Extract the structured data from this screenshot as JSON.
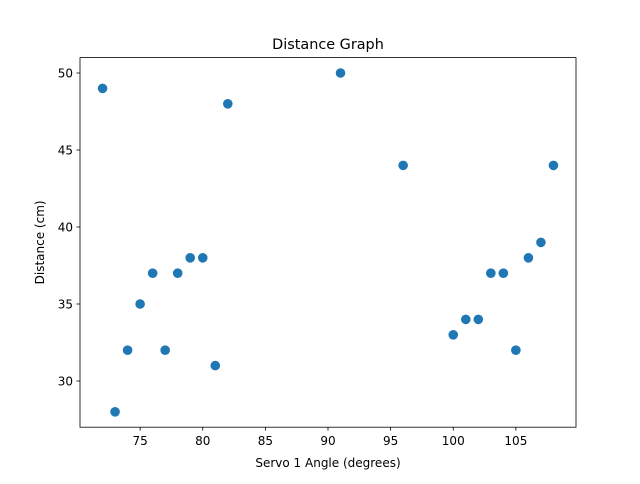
{
  "chart_data": {
    "type": "scatter",
    "title": "Distance Graph",
    "xlabel": "Servo 1 Angle (degrees)",
    "ylabel": "Distance (cm)",
    "xlim": [
      70.2,
      109.8
    ],
    "ylim": [
      27.0,
      51.0
    ],
    "xticks": [
      75,
      80,
      85,
      90,
      95,
      100,
      105
    ],
    "yticks": [
      30,
      35,
      40,
      45,
      50
    ],
    "grid": false,
    "marker_color": "#1f77b4",
    "points": [
      {
        "x": 72,
        "y": 49
      },
      {
        "x": 73,
        "y": 28
      },
      {
        "x": 74,
        "y": 32
      },
      {
        "x": 75,
        "y": 35
      },
      {
        "x": 76,
        "y": 37
      },
      {
        "x": 77,
        "y": 32
      },
      {
        "x": 78,
        "y": 37
      },
      {
        "x": 79,
        "y": 38
      },
      {
        "x": 80,
        "y": 38
      },
      {
        "x": 81,
        "y": 31
      },
      {
        "x": 82,
        "y": 48
      },
      {
        "x": 91,
        "y": 50
      },
      {
        "x": 96,
        "y": 44
      },
      {
        "x": 100,
        "y": 33
      },
      {
        "x": 101,
        "y": 34
      },
      {
        "x": 102,
        "y": 34
      },
      {
        "x": 103,
        "y": 37
      },
      {
        "x": 104,
        "y": 37
      },
      {
        "x": 105,
        "y": 32
      },
      {
        "x": 106,
        "y": 38
      },
      {
        "x": 107,
        "y": 39
      },
      {
        "x": 108,
        "y": 44
      }
    ]
  }
}
